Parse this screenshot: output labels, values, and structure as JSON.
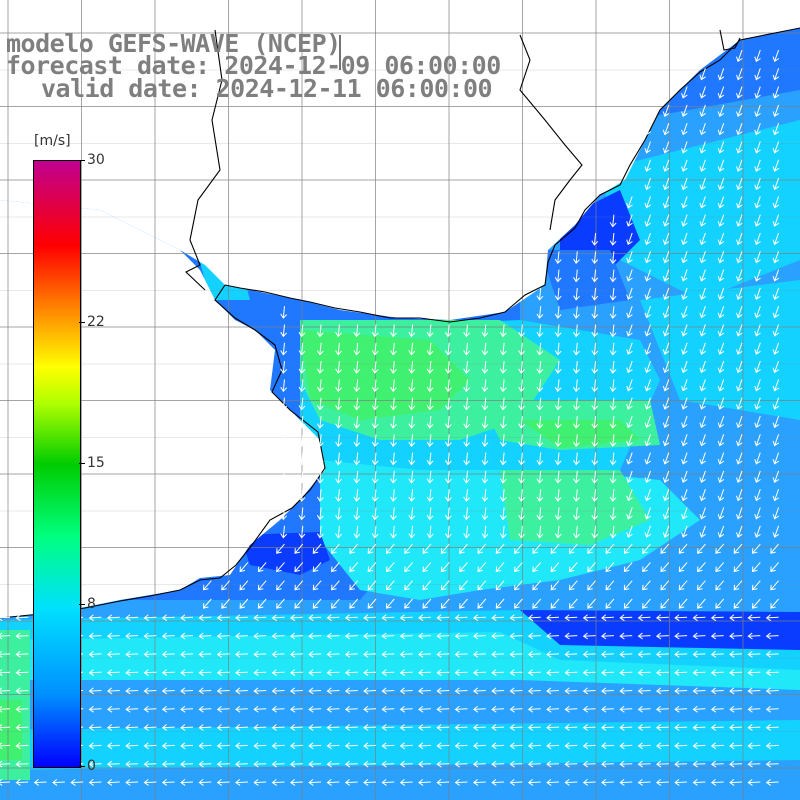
{
  "title": {
    "model": "modelo GEFS-WAVE (NCEP)",
    "forecast": "forecast date: 2024-12-09 06:00:00",
    "valid": "valid date: 2024-12-11 06:00:00"
  },
  "colorbar": {
    "unit": "[m/s]",
    "min": 0,
    "max": 30,
    "ticks": [
      {
        "value": 30,
        "label": "30"
      },
      {
        "value": 22,
        "label": "22"
      },
      {
        "value": 15,
        "label": "15"
      },
      {
        "value": 8,
        "label": "8"
      },
      {
        "value": 0,
        "label": "0"
      }
    ],
    "colors": [
      "#0000ff",
      "#0090ff",
      "#00e0ff",
      "#00ff80",
      "#00cc00",
      "#b0ff00",
      "#ffff00",
      "#ff8000",
      "#ff0000",
      "#c00090"
    ]
  },
  "map": {
    "land_color": "#ffffff",
    "grid_color": "#7f7f7f",
    "coast_color": "#000000",
    "arrow_color": "#ffffff",
    "field_colors": {
      "deep_blue": "#0a3cff",
      "blue": "#1f78ff",
      "mid_blue": "#2aa0ff",
      "cyan": "#14d2ff",
      "light_cyan": "#20e8f8",
      "aqua_green": "#3cf0a0",
      "green": "#40f070"
    }
  }
}
